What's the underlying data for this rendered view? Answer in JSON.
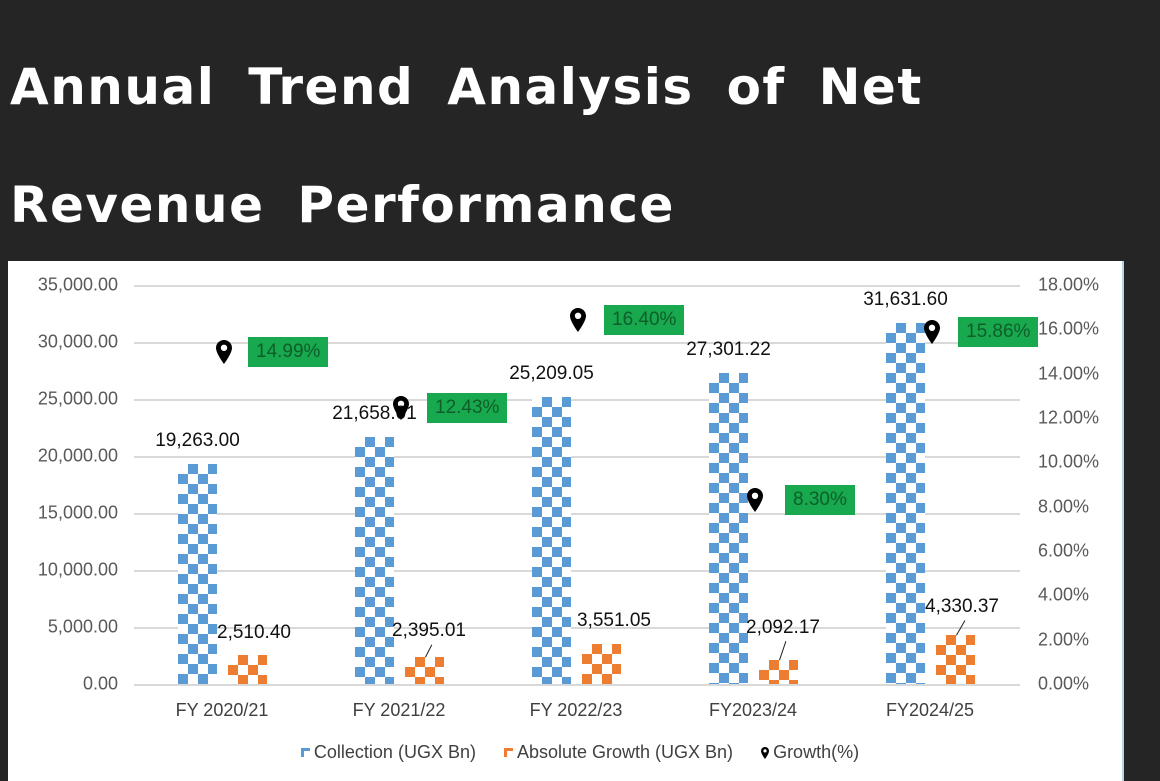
{
  "title": "Annual Trend Analysis of Net Revenue Performance",
  "chart_data": {
    "type": "bar",
    "title": "Annual Trend Analysis of Net Revenue Performance",
    "categories": [
      "FY 2020/21",
      "FY 2021/22",
      "FY 2022/23",
      "FY2023/24",
      "FY2024/25"
    ],
    "series": [
      {
        "name": "Collection (UGX Bn)",
        "type": "bar",
        "axis": "left",
        "color": "#5b9bd5",
        "values": [
          19263.0,
          21658.01,
          25209.05,
          27301.22,
          31631.6
        ],
        "labels": [
          "19,263.00",
          "21,658.01",
          "25,209.05",
          "27,301.22",
          "31,631.60"
        ]
      },
      {
        "name": "Absolute Growth (UGX Bn)",
        "type": "bar",
        "axis": "left",
        "color": "#ed7d31",
        "values": [
          2510.4,
          2395.01,
          3551.05,
          2092.17,
          4330.37
        ],
        "labels": [
          "2,510.40",
          "2,395.01",
          "3,551.05",
          "2,092.17",
          "4,330.37"
        ]
      },
      {
        "name": "Growth(%)",
        "type": "scatter",
        "axis": "right",
        "color": "#000000",
        "values": [
          14.99,
          12.43,
          16.4,
          8.3,
          15.86
        ],
        "labels": [
          "14.99%",
          "12.43%",
          "16.40%",
          "8.30%",
          "15.86%"
        ]
      }
    ],
    "xlabel": "",
    "ylabel": "",
    "ylim": [
      0,
      35000
    ],
    "y2lim": [
      0,
      18
    ],
    "yticks": [
      "35,000.00",
      "30,000.00",
      "25,000.00",
      "20,000.00",
      "15,000.00",
      "10,000.00",
      "5,000.00",
      "0.00"
    ],
    "y2ticks": [
      "18.00%",
      "16.00%",
      "14.00%",
      "12.00%",
      "10.00%",
      "8.00%",
      "6.00%",
      "4.00%",
      "2.00%",
      "0.00%"
    ],
    "grid": true,
    "legend_position": "bottom",
    "label_box_color": "#18a84e"
  },
  "legend": [
    {
      "label": "Collection (UGX Bn)"
    },
    {
      "label": "Absolute Growth (UGX Bn)"
    },
    {
      "label": "Growth(%)"
    }
  ]
}
